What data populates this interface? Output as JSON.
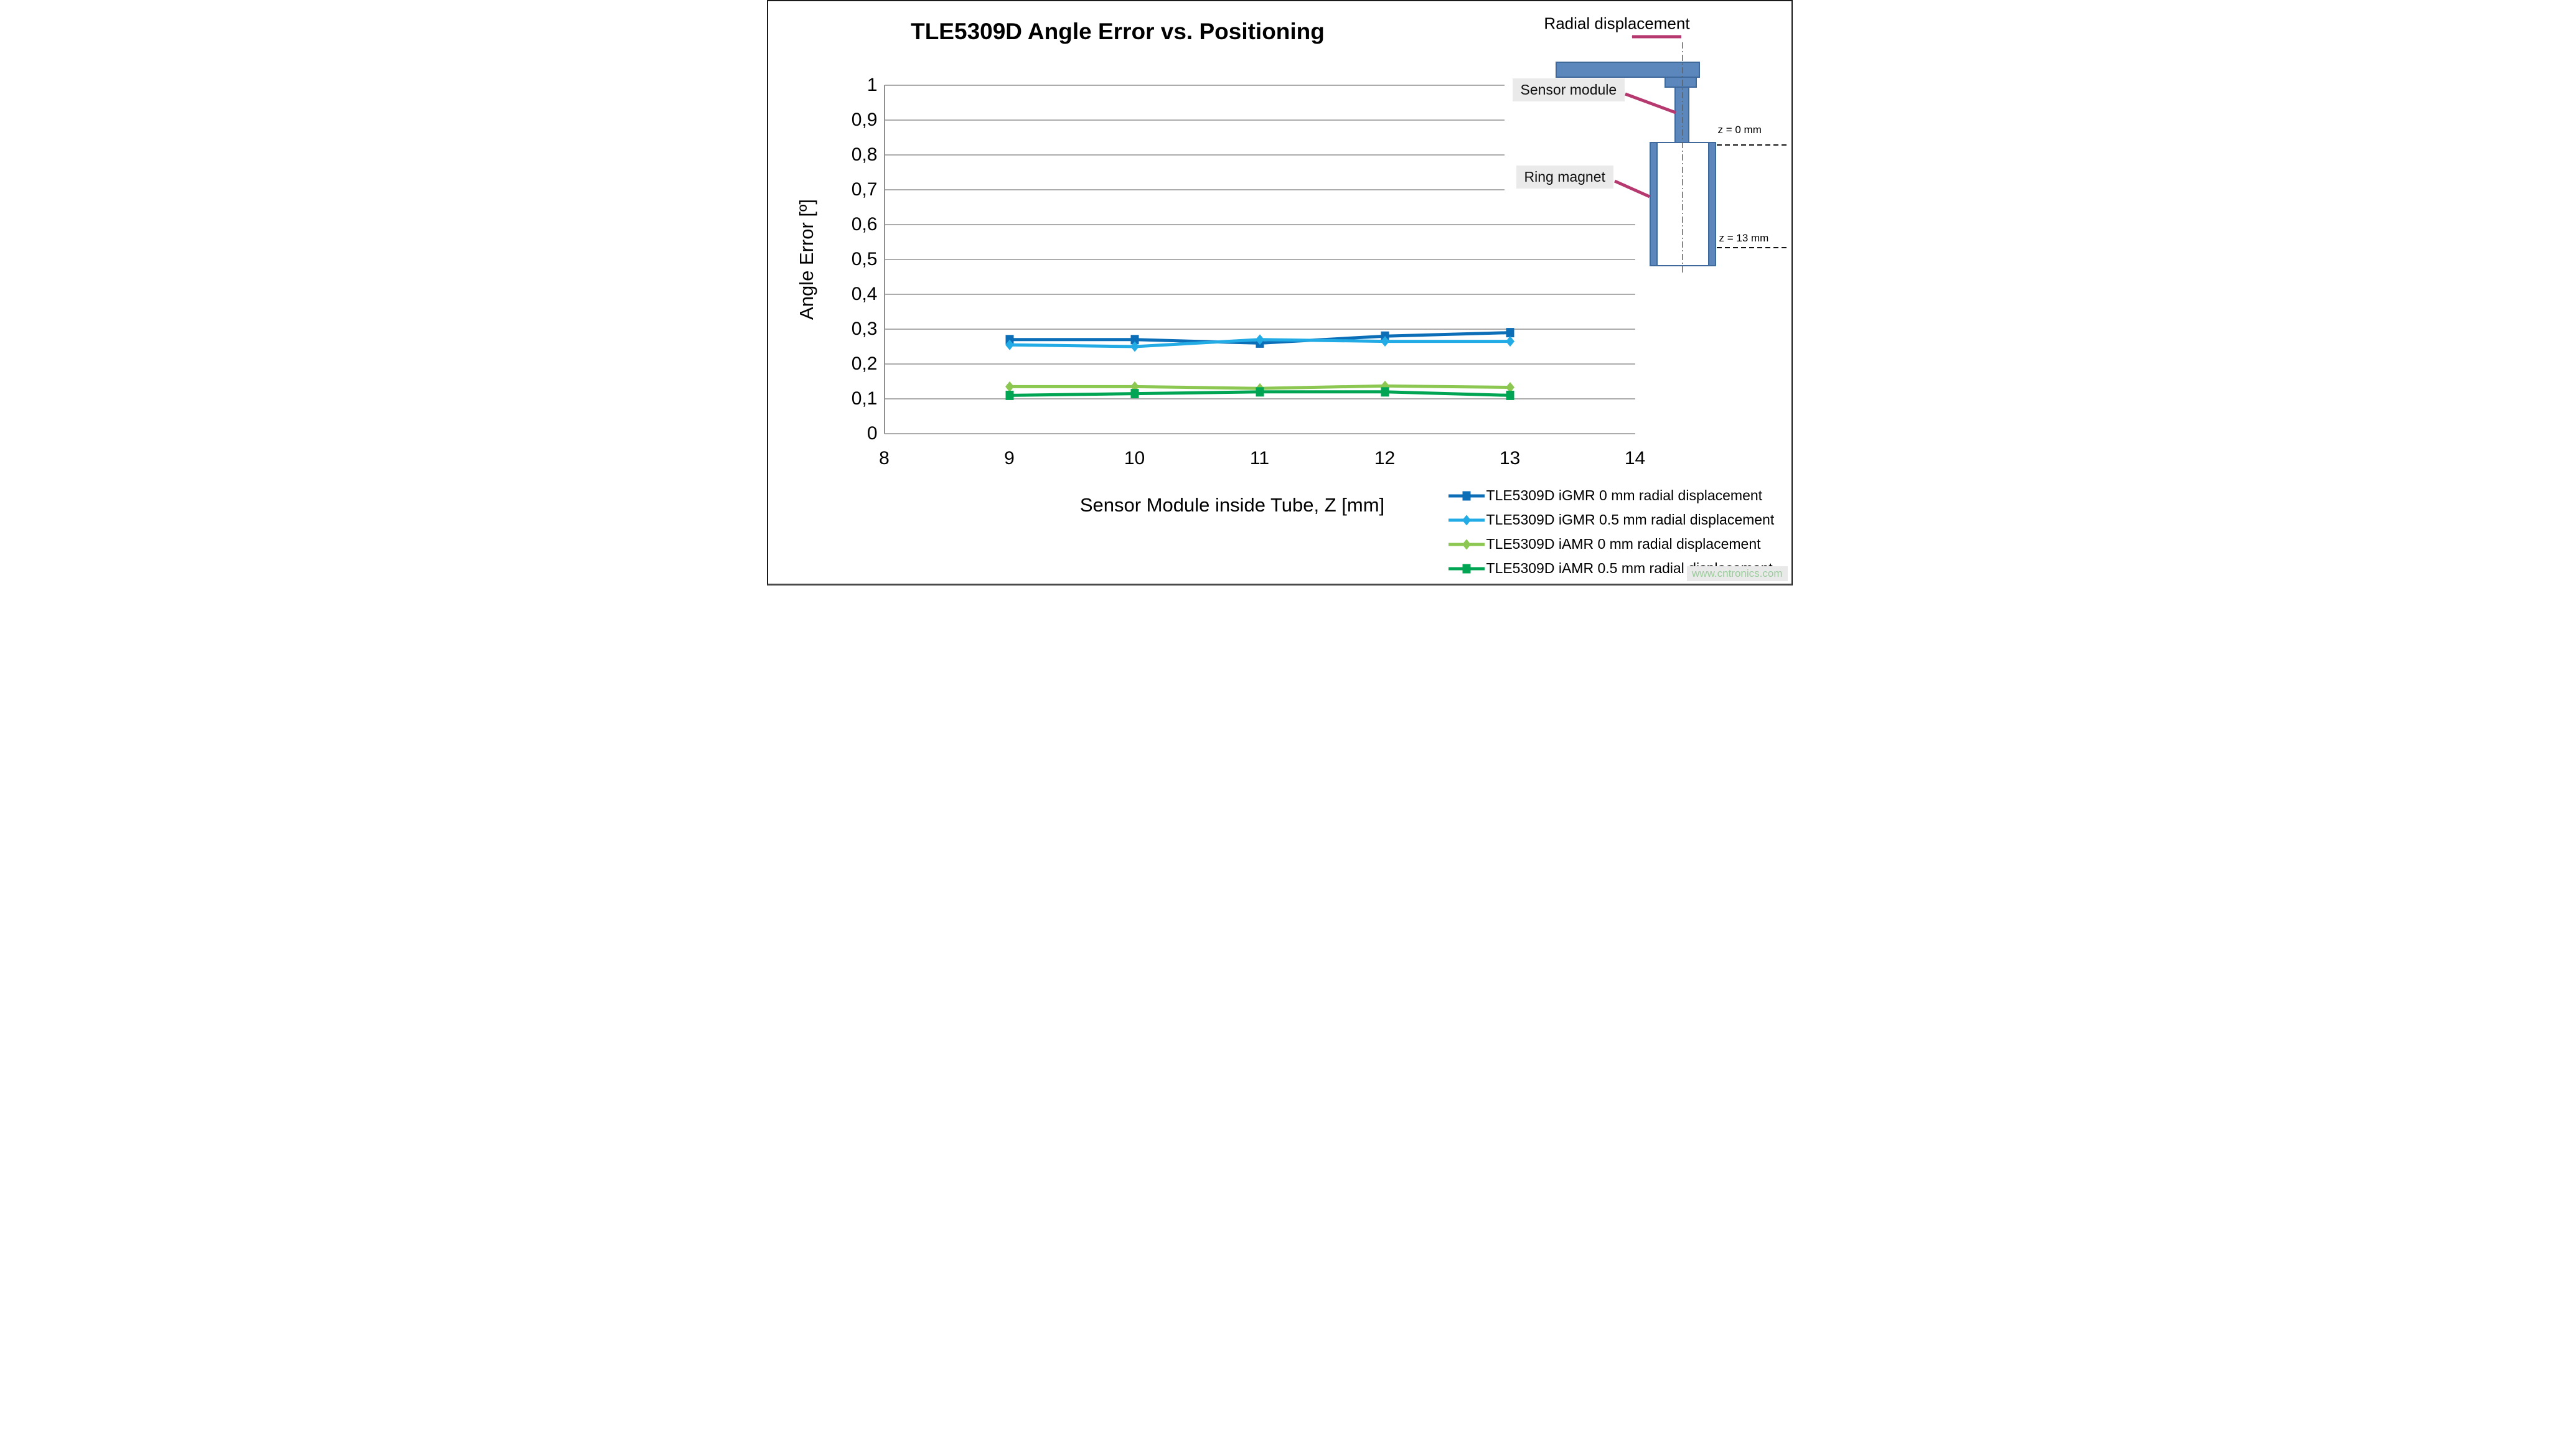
{
  "title": "TLE5309D Angle Error vs. Positioning",
  "watermark": "www.cntronics.com",
  "chart_data": {
    "type": "line",
    "title": "TLE5309D Angle Error vs. Positioning",
    "xlabel": "Sensor Module inside Tube, Z [mm]",
    "ylabel": "Angle Error [º]",
    "xlim": [
      8,
      14
    ],
    "ylim": [
      0,
      1
    ],
    "x_ticks": [
      8,
      9,
      10,
      11,
      12,
      13,
      14
    ],
    "y_ticks": [
      "0",
      "0,1",
      "0,2",
      "0,3",
      "0,4",
      "0,5",
      "0,6",
      "0,7",
      "0,8",
      "0,9",
      "1"
    ],
    "grid": "horizontal",
    "grid_color": "#919191",
    "legend_position": "bottom-right",
    "x": [
      9,
      10,
      11,
      12,
      13
    ],
    "series": [
      {
        "name": "TLE5309D iGMR 0 mm radial displacement",
        "color": "#0D6EB8",
        "marker": "square",
        "values": [
          0.27,
          0.27,
          0.26,
          0.28,
          0.29
        ]
      },
      {
        "name": "TLE5309D iGMR 0.5 mm radial displacement",
        "color": "#22ABE4",
        "marker": "diamond",
        "values": [
          0.255,
          0.25,
          0.27,
          0.265,
          0.265
        ]
      },
      {
        "name": "TLE5309D iAMR 0 mm radial displacement",
        "color": "#8CC751",
        "marker": "diamond",
        "values": [
          0.135,
          0.135,
          0.13,
          0.137,
          0.133
        ]
      },
      {
        "name": "TLE5309D iAMR 0.5 mm radial displacement",
        "color": "#00A553",
        "marker": "square",
        "values": [
          0.11,
          0.115,
          0.12,
          0.12,
          0.11
        ]
      }
    ]
  },
  "diagram": {
    "radial_label": "Radial displacement",
    "sensor_label": "Sensor module",
    "magnet_label": "Ring magnet",
    "z0_label": "z = 0 mm",
    "z13_label": "z = 13 mm",
    "shape_fill": "#5B87BC",
    "shape_stroke": "#40699B",
    "arrow_color": "#B5396F",
    "callout_bg": "#EAEAEA"
  }
}
